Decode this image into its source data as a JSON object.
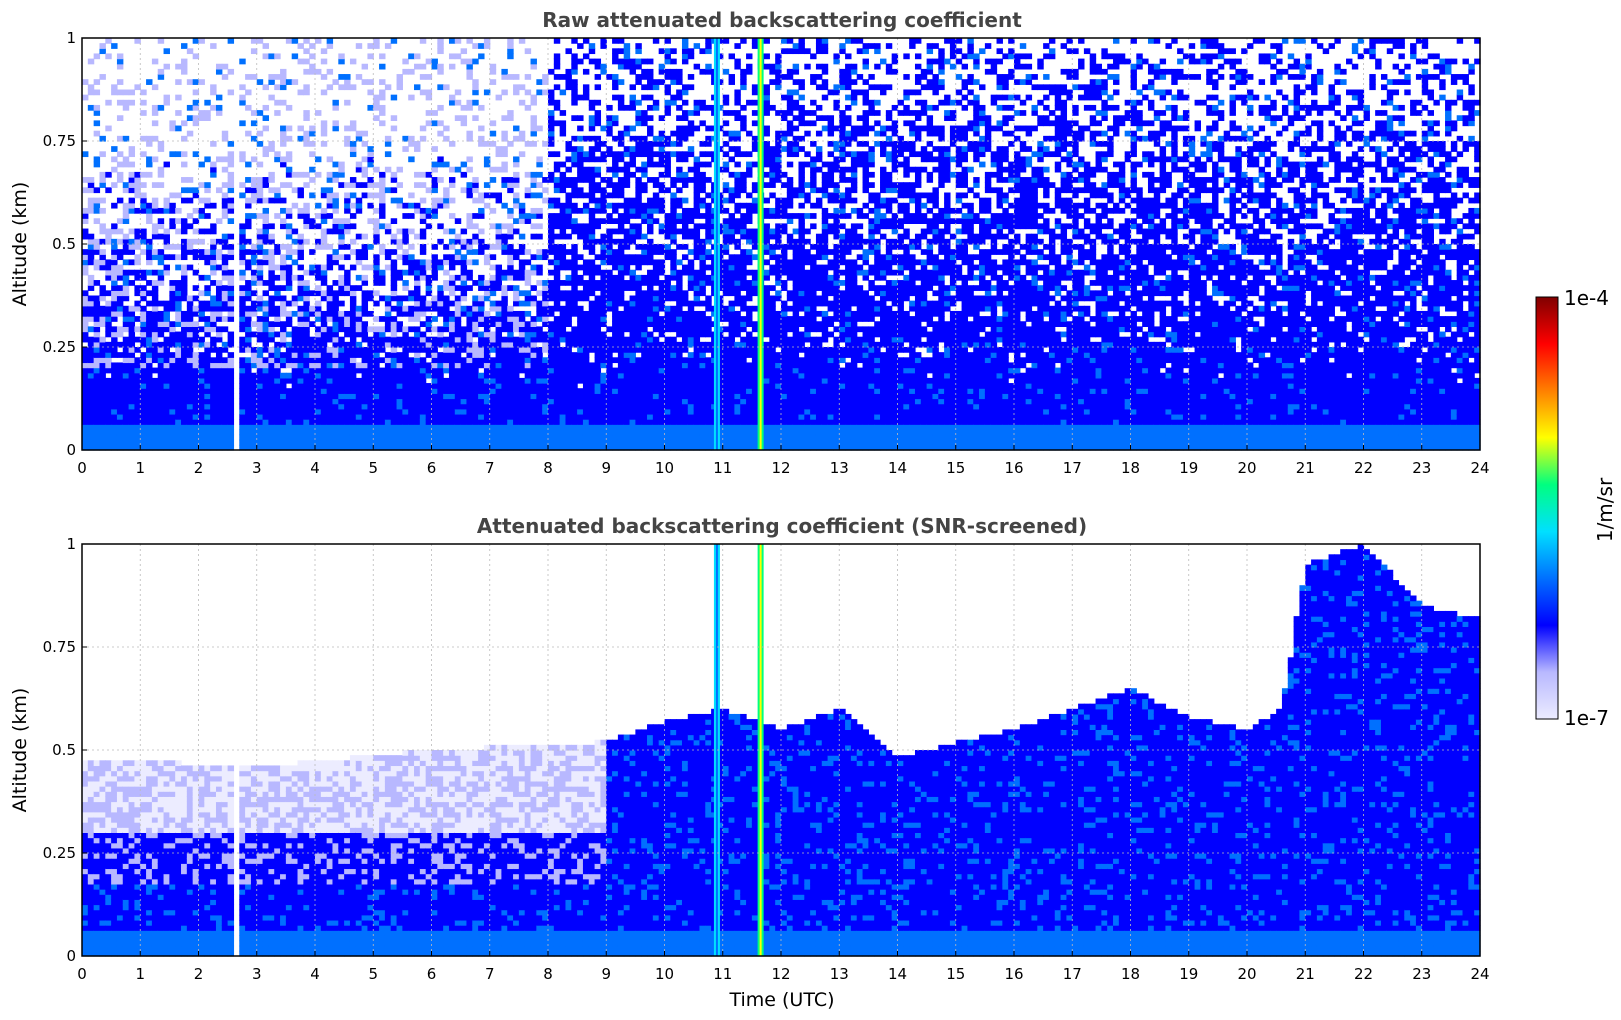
{
  "chart_data": [
    {
      "type": "heatmap",
      "title": "Raw attenuated backscattering coefficient",
      "xlabel": "",
      "ylabel": "Altitude (km)",
      "xlim": [
        0,
        24
      ],
      "ylim": [
        0,
        1
      ],
      "x_ticks": [
        "0",
        "1",
        "2",
        "3",
        "4",
        "5",
        "6",
        "7",
        "8",
        "9",
        "10",
        "11",
        "12",
        "13",
        "14",
        "15",
        "16",
        "17",
        "18",
        "19",
        "20",
        "21",
        "22",
        "23",
        "24"
      ],
      "y_ticks": [
        "0",
        "0.25",
        "0.5",
        "0.75",
        "1"
      ],
      "grid": true,
      "screened": false,
      "gaps_utc": [
        2.65,
        2.72
      ]
    },
    {
      "type": "heatmap",
      "title": "Attenuated backscattering coefficient (SNR-screened)",
      "xlabel": "Time (UTC)",
      "ylabel": "Altitude (km)",
      "xlim": [
        0,
        24
      ],
      "ylim": [
        0,
        1
      ],
      "x_ticks": [
        "0",
        "1",
        "2",
        "3",
        "4",
        "5",
        "6",
        "7",
        "8",
        "9",
        "10",
        "11",
        "12",
        "13",
        "14",
        "15",
        "16",
        "17",
        "18",
        "19",
        "20",
        "21",
        "22",
        "23",
        "24"
      ],
      "y_ticks": [
        "0",
        "0.25",
        "0.5",
        "0.75",
        "1"
      ],
      "grid": true,
      "screened": true,
      "boundary_layer_top_km": {
        "time_utc": [
          0,
          3,
          6,
          9,
          10,
          11,
          12,
          13,
          14,
          15,
          16,
          17,
          18,
          19,
          20,
          20.6,
          21,
          22,
          23,
          24
        ],
        "altitude": [
          0.48,
          0.46,
          0.5,
          0.52,
          0.57,
          0.6,
          0.55,
          0.6,
          0.48,
          0.52,
          0.55,
          0.6,
          0.65,
          0.58,
          0.55,
          0.6,
          0.95,
          1.0,
          0.85,
          0.82
        ]
      },
      "aerosol_layers_utc": [
        10.9,
        11.65
      ]
    }
  ],
  "colorbar": {
    "label": "1/m/sr",
    "min_label": "1e-7",
    "max_label": "1e-4",
    "scale": "log",
    "colormap": [
      "#ececff",
      "#b8b8ff",
      "#0000ff",
      "#0070ff",
      "#00e0ff",
      "#00ff80",
      "#ffff00",
      "#ff8000",
      "#ff0000",
      "#800000"
    ]
  }
}
